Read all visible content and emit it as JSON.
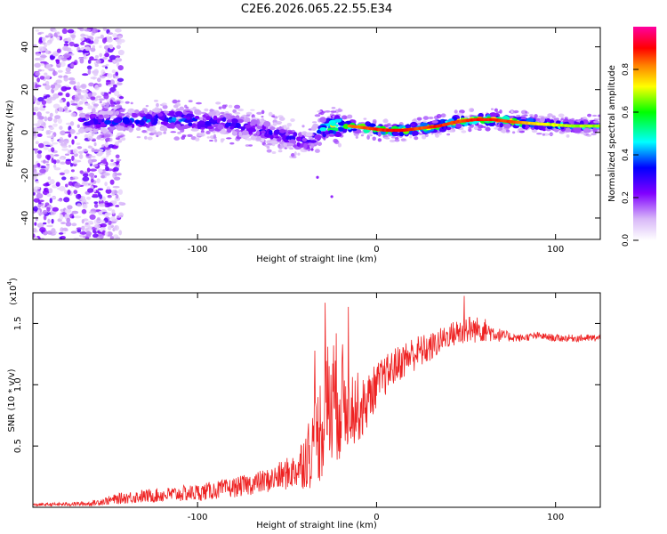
{
  "title": "C2E6.2026.065.22.55.E34",
  "chart_data": [
    {
      "type": "heatmap",
      "name": "spectrogram",
      "xlabel": "Height of straight line (km)",
      "ylabel": "Frequency (Hz)",
      "xlim": [
        -192,
        125
      ],
      "ylim": [
        -50,
        49
      ],
      "x_ticks": [
        -100,
        0,
        100
      ],
      "x_tick_labels": [
        "-100",
        "0",
        "100"
      ],
      "y_ticks": [
        -40,
        -20,
        0,
        20,
        40
      ],
      "y_tick_labels": [
        "-40",
        "-20",
        "0",
        "20",
        "40"
      ],
      "colorbar": {
        "label": "Normalized spectral amplitude",
        "range": [
          0,
          1
        ],
        "ticks": [
          0.0,
          0.2,
          0.4,
          0.6,
          0.8
        ],
        "tick_labels": [
          "0.0",
          "0.2",
          "0.4",
          "0.6",
          "0.8"
        ],
        "colors": [
          "#ffffff",
          "#d8b8f8",
          "#8000ff",
          "#0000ff",
          "#00ffff",
          "#00ff00",
          "#ffff00",
          "#ff8000",
          "#ff0000",
          "#ff00ff"
        ]
      },
      "ridge": {
        "x": [
          -165,
          -150,
          -130,
          -110,
          -90,
          -75,
          -65,
          -55,
          -45,
          -38,
          -32,
          -25,
          -15,
          -5,
          5,
          15,
          25,
          35,
          45,
          55,
          65,
          75,
          90,
          110,
          125
        ],
        "freq_hz": [
          5,
          5,
          6,
          6,
          5,
          3,
          1,
          -1,
          -3,
          -5,
          1,
          3,
          3,
          2,
          1,
          1,
          2,
          3,
          5,
          6,
          6,
          5,
          4,
          3,
          3
        ],
        "amplitude": [
          0.35,
          0.4,
          0.4,
          0.45,
          0.4,
          0.35,
          0.35,
          0.35,
          0.4,
          0.3,
          0.5,
          0.7,
          0.75,
          0.8,
          0.85,
          0.85,
          0.8,
          0.85,
          0.8,
          0.85,
          0.85,
          0.8,
          0.65,
          0.6,
          0.6
        ]
      },
      "noise_region_x": [
        -192,
        -150
      ]
    },
    {
      "type": "line",
      "name": "snr",
      "xlabel": "Height of straight line (km)",
      "ylabel": "SNR (10 * v/v)",
      "scale_label_base": "(x10",
      "scale_label_exp": "4",
      "scale_label_close": ")",
      "color": "#ee2222",
      "xlim": [
        -192,
        125
      ],
      "ylim": [
        0,
        1.75
      ],
      "x_ticks": [
        -100,
        0,
        100
      ],
      "x_tick_labels": [
        "-100",
        "0",
        "100"
      ],
      "y_ticks": [
        0.5,
        1.0,
        1.5
      ],
      "y_tick_labels": [
        "0.5",
        "1.0",
        "1.5"
      ],
      "x": [
        -192,
        -160,
        -140,
        -120,
        -100,
        -80,
        -60,
        -45,
        -35,
        -28,
        -22,
        -15,
        -8,
        0,
        10,
        20,
        30,
        40,
        50,
        60,
        70,
        80,
        90,
        100,
        110,
        125
      ],
      "y": [
        0.02,
        0.03,
        0.08,
        0.1,
        0.12,
        0.16,
        0.22,
        0.3,
        0.5,
        0.8,
        0.9,
        0.85,
        0.8,
        1.0,
        1.15,
        1.25,
        1.3,
        1.4,
        1.45,
        1.45,
        1.4,
        1.38,
        1.4,
        1.38,
        1.38,
        1.38
      ],
      "noise_amplitude": [
        0.01,
        0.02,
        0.05,
        0.06,
        0.07,
        0.08,
        0.1,
        0.15,
        0.35,
        0.55,
        0.55,
        0.35,
        0.25,
        0.18,
        0.15,
        0.15,
        0.12,
        0.1,
        0.12,
        0.1,
        0.05,
        0.03,
        0.03,
        0.03,
        0.03,
        0.03
      ]
    }
  ]
}
